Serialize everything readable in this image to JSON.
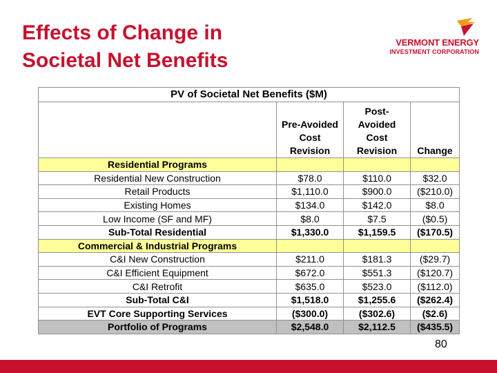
{
  "slide": {
    "title_line1": "Effects of Change in",
    "title_line2": "Societal Net Benefits",
    "page_number": "80",
    "accent_color": "#c8102e"
  },
  "logo": {
    "line1": "VERMONT ENERGY",
    "line2": "INVESTMENT CORPORATION"
  },
  "table": {
    "title": "PV of Societal Net Benefits ($M)",
    "columns": [
      "Pre-Avoided Cost Revision",
      "Post-Avoided Cost Revision",
      "Change"
    ],
    "rows": [
      {
        "label": "Residential Programs",
        "type": "section",
        "values": [
          "",
          "",
          ""
        ]
      },
      {
        "label": "Residential New Construction",
        "type": "normal",
        "values": [
          "$78.0",
          "$110.0",
          "$32.0"
        ]
      },
      {
        "label": "Retail Products",
        "type": "normal",
        "values": [
          "$1,110.0",
          "$900.0",
          "($210.0)"
        ]
      },
      {
        "label": "Existing Homes",
        "type": "normal",
        "values": [
          "$134.0",
          "$142.0",
          "$8.0"
        ]
      },
      {
        "label": "Low Income (SF and MF)",
        "type": "normal",
        "values": [
          "$8.0",
          "$7.5",
          "($0.5)"
        ]
      },
      {
        "label": "Sub-Total Residential",
        "type": "bold",
        "values": [
          "$1,330.0",
          "$1,159.5",
          "($170.5)"
        ]
      },
      {
        "label": "Commercial & Industrial Programs",
        "type": "section",
        "values": [
          "",
          "",
          ""
        ]
      },
      {
        "label": "C&I New Construction",
        "type": "normal",
        "values": [
          "$211.0",
          "$181.3",
          "($29.7)"
        ]
      },
      {
        "label": "C&I  Efficient Equipment",
        "type": "normal",
        "values": [
          "$672.0",
          "$551.3",
          "($120.7)"
        ]
      },
      {
        "label": "C&I Retrofit",
        "type": "normal",
        "values": [
          "$635.0",
          "$523.0",
          "($112.0)"
        ]
      },
      {
        "label": "Sub-Total C&I",
        "type": "bold",
        "values": [
          "$1,518.0",
          "$1,255.6",
          "($262.4)"
        ]
      },
      {
        "label": "EVT Core Supporting Services",
        "type": "bold",
        "values": [
          "($300.0)",
          "($302.6)",
          "($2.6)"
        ]
      },
      {
        "label": "Portfolio of Programs",
        "type": "portfolio",
        "values": [
          "$2,548.0",
          "$2,112.5",
          "($435.5)"
        ]
      }
    ]
  }
}
